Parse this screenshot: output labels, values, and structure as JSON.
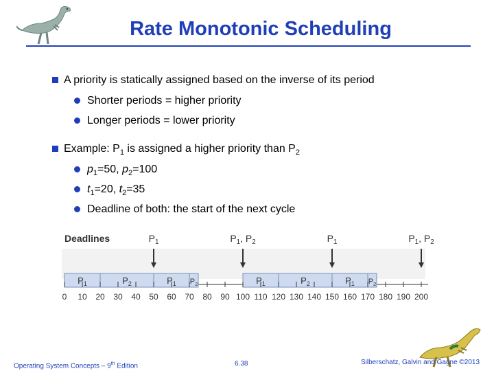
{
  "slide": {
    "title": "Rate Monotonic Scheduling",
    "bullets": [
      {
        "text": "A priority is statically assigned based on the inverse of its period"
      },
      {
        "text": "Shorter periods = higher priority"
      },
      {
        "text": "Longer periods = lower priority"
      },
      {
        "prefix": "Example: P",
        "sub1": "1",
        "mid": " is assigned a higher priority than P",
        "sub2": "2"
      },
      {
        "a": "p",
        "sa": "1",
        "b": "=50, ",
        "c": "p",
        "sc": "2",
        "d": "=100"
      },
      {
        "a": "t",
        "sa": "1",
        "b": "=20, ",
        "c": "t",
        "sc": "2",
        "d": "=35"
      },
      {
        "text": "Deadline of both: the start of the next cycle"
      }
    ]
  },
  "diagram": {
    "deadlines_label": "Deadlines",
    "deadline_markers": [
      {
        "label": "P",
        "sub": "1",
        "t": 50
      },
      {
        "label": "P",
        "sub": "1",
        "label2": ", P",
        "sub2": "2",
        "t": 100
      },
      {
        "label": "P",
        "sub": "1",
        "t": 150
      },
      {
        "label": "P",
        "sub": "1",
        "label2": ", P",
        "sub2": "2",
        "t": 200
      }
    ],
    "segments": [
      {
        "label": "P",
        "sub": "1",
        "start": 0,
        "end": 20
      },
      {
        "label": "P",
        "sub": "2",
        "start": 20,
        "end": 50
      },
      {
        "label": "P",
        "sub": "1",
        "start": 50,
        "end": 70
      },
      {
        "label": "P",
        "sub": "2",
        "start": 70,
        "end": 75
      },
      {
        "label": "P",
        "sub": "1",
        "start": 100,
        "end": 120
      },
      {
        "label": "P",
        "sub": "2",
        "start": 120,
        "end": 150
      },
      {
        "label": "P",
        "sub": "1",
        "start": 150,
        "end": 170
      },
      {
        "label": "P",
        "sub": "2",
        "start": 170,
        "end": 175
      }
    ],
    "ticks": [
      "0",
      "10",
      "20",
      "30",
      "40",
      "50",
      "60",
      "70",
      "80",
      "90",
      "100",
      "110",
      "120",
      "130",
      "140",
      "150",
      "160",
      "170",
      "180",
      "190",
      "200"
    ],
    "colors": {
      "segment_fill": "#cddaf0",
      "segment_border": "#7a8fb8",
      "accent": "#1f3fb8"
    }
  },
  "footer": {
    "left_a": "Operating System Concepts – 9",
    "left_sup": "th",
    "left_b": " Edition",
    "center": "6.38",
    "right": "Silberschatz, Galvin and Gagne ©2013"
  }
}
